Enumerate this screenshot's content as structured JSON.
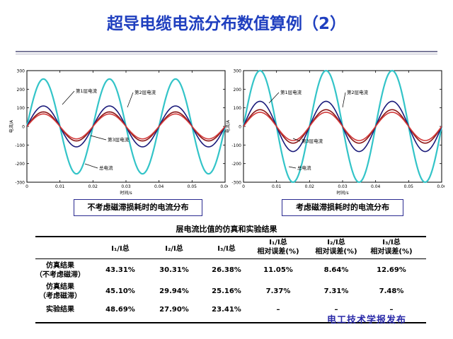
{
  "title": "超导电缆电流分布数值算例（2）",
  "colors": {
    "outer": "#33c4c8",
    "dark": "#1a1a7a",
    "darkred": "#8b1414",
    "red": "#d23a3a",
    "title": "#1f3fbf"
  },
  "chart_data": [
    {
      "type": "line",
      "caption": "不考虑磁滞损耗时的电流分布",
      "xlabel": "时间/s",
      "ylabel": "电流/A",
      "xlim": [
        0,
        0.06
      ],
      "ylim": [
        -300,
        300
      ],
      "xticks": [
        "0",
        "0.01",
        "0.02",
        "0.03",
        "0.04",
        "0.05",
        "0.06"
      ],
      "yticks": [
        "300",
        "200",
        "100",
        "0",
        "-100",
        "-200",
        "-300"
      ],
      "series": [
        {
          "name": "总电流",
          "amplitude": 255,
          "color": "#33c4c8"
        },
        {
          "name": "第1层电流",
          "amplitude": 110,
          "color": "#1a1a7a"
        },
        {
          "name": "第2层电流",
          "amplitude": 78,
          "color": "#8b1414"
        },
        {
          "name": "第3层电流",
          "amplitude": 67,
          "color": "#d23a3a"
        }
      ],
      "annotations": [
        "第1层电流",
        "第2层电流",
        "第3层电流",
        "总电流"
      ]
    },
    {
      "type": "line",
      "caption": "考虑磁滞损耗时的电流分布",
      "xlabel": "时间/s",
      "ylabel": "电流/A",
      "xlim": [
        0,
        0.06
      ],
      "ylim": [
        -300,
        300
      ],
      "xticks": [
        "0",
        "0.01",
        "0.02",
        "0.03",
        "0.04",
        "0.05",
        "0.06"
      ],
      "yticks": [
        "300",
        "200",
        "100",
        "0",
        "-100",
        "-200",
        "-300"
      ],
      "series": [
        {
          "name": "总电流",
          "amplitude": 300,
          "color": "#33c4c8"
        },
        {
          "name": "第1层电流",
          "amplitude": 135,
          "color": "#1a1a7a"
        },
        {
          "name": "第2层电流",
          "amplitude": 90,
          "color": "#8b1414"
        },
        {
          "name": "第3层电流",
          "amplitude": 76,
          "color": "#d23a3a"
        }
      ],
      "annotations": [
        "第1层电流",
        "第2层电流",
        "第3层电流",
        "总电流"
      ]
    }
  ],
  "table": {
    "title": "层电流比值的仿真和实验结果",
    "headers": [
      [
        "I₁/I总",
        ""
      ],
      [
        "I₂/I总",
        ""
      ],
      [
        "I₃/I总",
        ""
      ],
      [
        "I₁/I总",
        "相对误差(%)"
      ],
      [
        "I₂/I总",
        "相对误差(%)"
      ],
      [
        "I₃/I总",
        "相对误差(%)"
      ]
    ],
    "rows": [
      {
        "label": [
          "仿真结果",
          "（不考虑磁滞）"
        ],
        "cells": [
          "43.31%",
          "30.31%",
          "26.38%",
          "11.05%",
          "8.64%",
          "12.69%"
        ]
      },
      {
        "label": [
          "仿真结果",
          "（考虑磁滞）"
        ],
        "cells": [
          "45.10%",
          "29.94%",
          "25.16%",
          "7.37%",
          "7.31%",
          "7.48%"
        ]
      },
      {
        "label": [
          "实验结果",
          ""
        ],
        "cells": [
          "48.69%",
          "27.90%",
          "23.41%",
          "–",
          "–",
          "–"
        ]
      }
    ]
  },
  "footer": "电工技术学报发布"
}
